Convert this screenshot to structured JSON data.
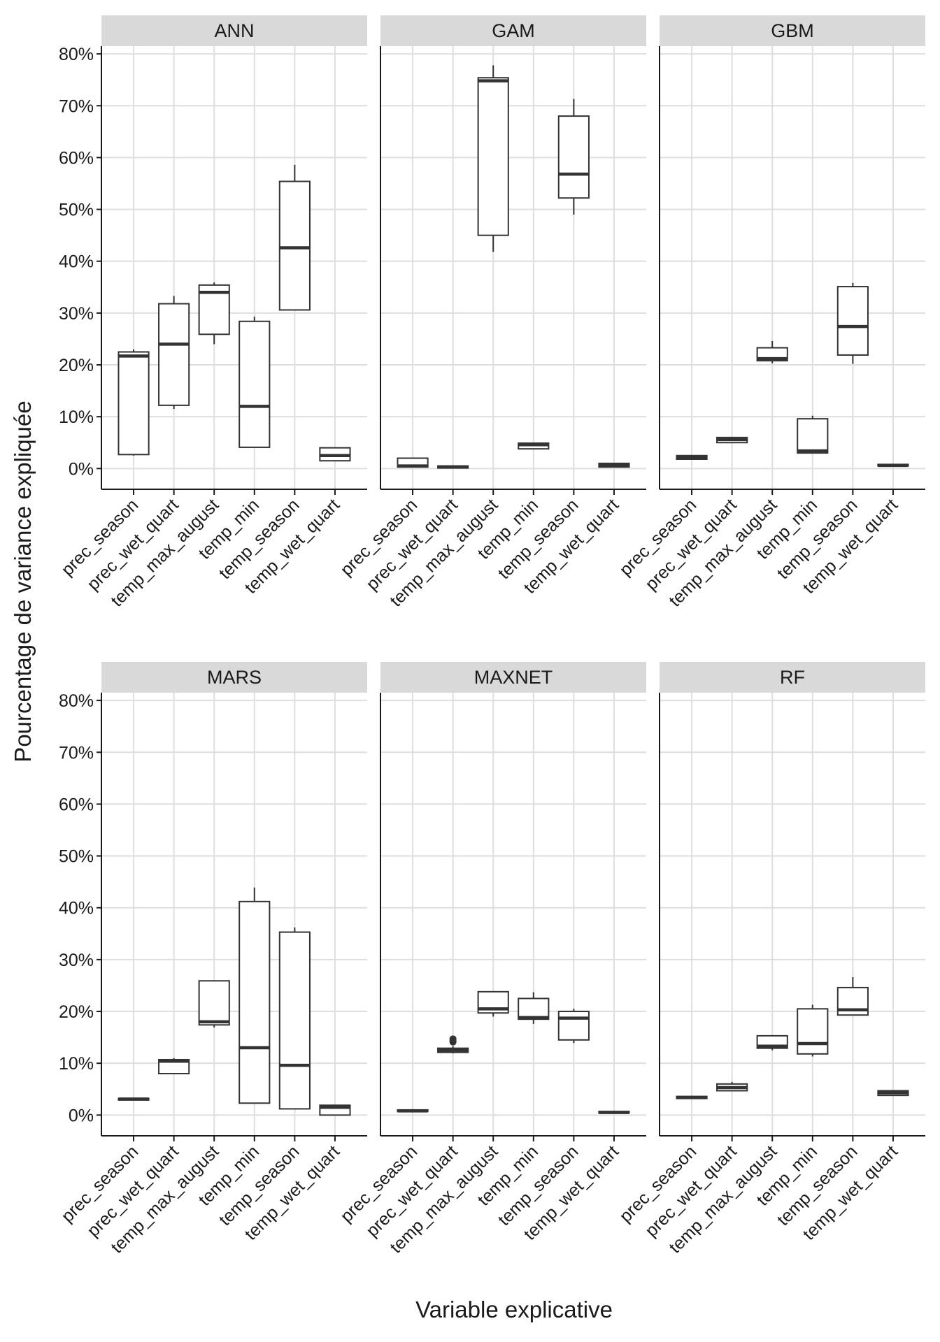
{
  "chart_data": {
    "type": "boxplot",
    "xlabel": "Variable explicative",
    "ylabel": "Pourcentage de variance expliquée",
    "ylim": [
      -4,
      81.5
    ],
    "y_ticks": [
      "0%",
      "10%",
      "20%",
      "30%",
      "40%",
      "50%",
      "60%",
      "70%",
      "80%"
    ],
    "y_tick_values": [
      0,
      10,
      20,
      30,
      40,
      50,
      60,
      70,
      80
    ],
    "categories": [
      "prec_season",
      "prec_wet_quart",
      "temp_max_august",
      "temp_min",
      "temp_season",
      "temp_wet_quart"
    ],
    "grid": true,
    "panels": [
      {
        "name": "ANN",
        "boxes": [
          {
            "min": 2.5,
            "q1": 2.7,
            "median": 21.7,
            "q3": 22.5,
            "max": 23.0,
            "outliers": []
          },
          {
            "min": 11.5,
            "q1": 12.2,
            "median": 24.0,
            "q3": 31.8,
            "max": 33.3,
            "outliers": []
          },
          {
            "min": 24.0,
            "q1": 25.9,
            "median": 34.0,
            "q3": 35.4,
            "max": 35.9,
            "outliers": []
          },
          {
            "min": 4.1,
            "q1": 4.1,
            "median": 12.0,
            "q3": 28.4,
            "max": 29.3,
            "outliers": []
          },
          {
            "min": 30.6,
            "q1": 30.6,
            "median": 42.6,
            "q3": 55.4,
            "max": 58.6,
            "outliers": []
          },
          {
            "min": 1.5,
            "q1": 1.5,
            "median": 2.5,
            "q3": 4.0,
            "max": 4.0,
            "outliers": []
          }
        ]
      },
      {
        "name": "GAM",
        "boxes": [
          {
            "min": 0.2,
            "q1": 0.3,
            "median": 0.5,
            "q3": 2.0,
            "max": 2.0,
            "outliers": []
          },
          {
            "min": 0.1,
            "q1": 0.1,
            "median": 0.3,
            "q3": 0.5,
            "max": 0.6,
            "outliers": []
          },
          {
            "min": 41.8,
            "q1": 45.0,
            "median": 74.8,
            "q3": 75.4,
            "max": 77.8,
            "outliers": []
          },
          {
            "min": 3.8,
            "q1": 3.8,
            "median": 4.6,
            "q3": 4.9,
            "max": 4.9,
            "outliers": []
          },
          {
            "min": 49.0,
            "q1": 52.2,
            "median": 56.8,
            "q3": 68.0,
            "max": 71.3,
            "outliers": []
          },
          {
            "min": 0.2,
            "q1": 0.3,
            "median": 0.6,
            "q3": 1.0,
            "max": 1.0,
            "outliers": []
          }
        ]
      },
      {
        "name": "GBM",
        "boxes": [
          {
            "min": 1.7,
            "q1": 1.8,
            "median": 2.1,
            "q3": 2.5,
            "max": 2.6,
            "outliers": []
          },
          {
            "min": 5.0,
            "q1": 5.0,
            "median": 5.6,
            "q3": 6.0,
            "max": 6.0,
            "outliers": []
          },
          {
            "min": 20.3,
            "q1": 20.8,
            "median": 21.2,
            "q3": 23.3,
            "max": 24.6,
            "outliers": []
          },
          {
            "min": 2.9,
            "q1": 3.0,
            "median": 3.4,
            "q3": 9.6,
            "max": 10.2,
            "outliers": []
          },
          {
            "min": 20.2,
            "q1": 21.9,
            "median": 27.4,
            "q3": 35.1,
            "max": 35.8,
            "outliers": []
          },
          {
            "min": 0.5,
            "q1": 0.5,
            "median": 0.6,
            "q3": 0.8,
            "max": 0.8,
            "outliers": []
          }
        ]
      },
      {
        "name": "MARS",
        "boxes": [
          {
            "min": 2.9,
            "q1": 2.9,
            "median": 3.1,
            "q3": 3.2,
            "max": 3.2,
            "outliers": []
          },
          {
            "min": 8.0,
            "q1": 8.0,
            "median": 10.4,
            "q3": 10.7,
            "max": 11.0,
            "outliers": []
          },
          {
            "min": 16.9,
            "q1": 17.4,
            "median": 18.0,
            "q3": 25.9,
            "max": 25.9,
            "outliers": []
          },
          {
            "min": 2.3,
            "q1": 2.3,
            "median": 13.0,
            "q3": 41.2,
            "max": 43.9,
            "outliers": []
          },
          {
            "min": 1.2,
            "q1": 1.2,
            "median": 9.6,
            "q3": 35.3,
            "max": 36.2,
            "outliers": []
          },
          {
            "min": 0.0,
            "q1": 0.0,
            "median": 1.5,
            "q3": 1.9,
            "max": 1.9,
            "outliers": []
          }
        ]
      },
      {
        "name": "MAXNET",
        "boxes": [
          {
            "min": 0.7,
            "q1": 0.7,
            "median": 0.8,
            "q3": 1.0,
            "max": 1.0,
            "outliers": []
          },
          {
            "min": 11.9,
            "q1": 12.1,
            "median": 12.5,
            "q3": 12.9,
            "max": 13.3,
            "outliers": [
              14.1,
              14.4,
              14.7
            ]
          },
          {
            "min": 19.0,
            "q1": 19.7,
            "median": 20.5,
            "q3": 23.8,
            "max": 23.8,
            "outliers": []
          },
          {
            "min": 17.6,
            "q1": 18.5,
            "median": 18.8,
            "q3": 22.5,
            "max": 23.7,
            "outliers": []
          },
          {
            "min": 13.9,
            "q1": 14.5,
            "median": 18.7,
            "q3": 20.0,
            "max": 20.5,
            "outliers": []
          },
          {
            "min": 0.4,
            "q1": 0.4,
            "median": 0.5,
            "q3": 0.7,
            "max": 0.7,
            "outliers": []
          }
        ]
      },
      {
        "name": "RF",
        "boxes": [
          {
            "min": 3.2,
            "q1": 3.2,
            "median": 3.4,
            "q3": 3.6,
            "max": 3.6,
            "outliers": []
          },
          {
            "min": 4.7,
            "q1": 4.7,
            "median": 5.3,
            "q3": 6.0,
            "max": 6.4,
            "outliers": []
          },
          {
            "min": 12.5,
            "q1": 12.9,
            "median": 13.3,
            "q3": 15.3,
            "max": 15.3,
            "outliers": []
          },
          {
            "min": 11.3,
            "q1": 11.8,
            "median": 13.8,
            "q3": 20.5,
            "max": 21.3,
            "outliers": []
          },
          {
            "min": 19.3,
            "q1": 19.3,
            "median": 20.3,
            "q3": 24.6,
            "max": 26.6,
            "outliers": []
          },
          {
            "min": 3.8,
            "q1": 3.8,
            "median": 4.3,
            "q3": 4.7,
            "max": 4.7,
            "outliers": []
          }
        ]
      }
    ]
  }
}
